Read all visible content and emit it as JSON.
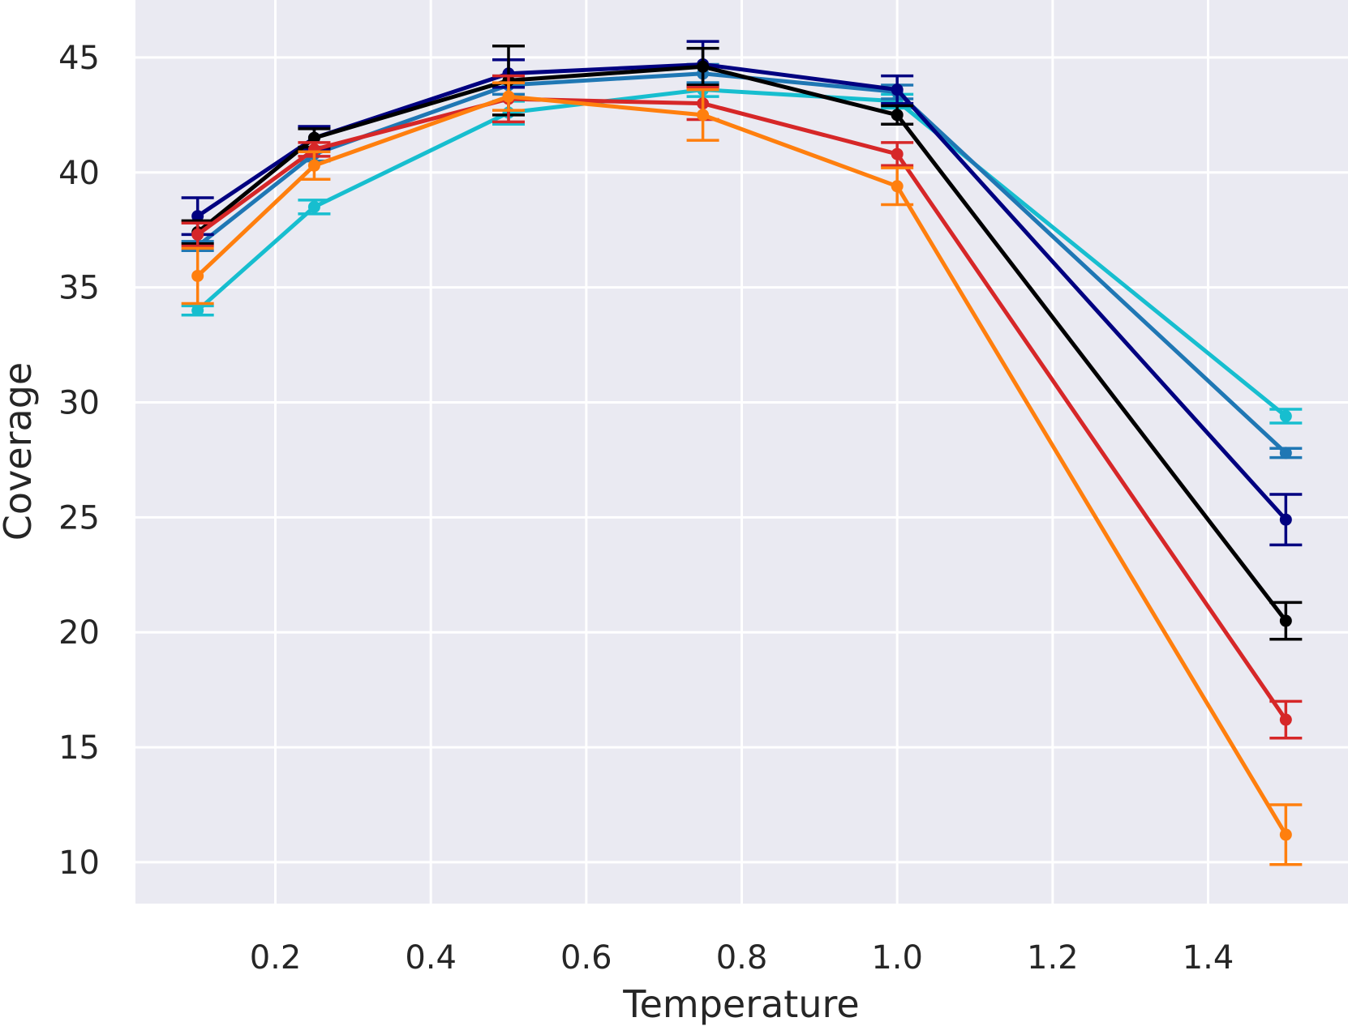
{
  "chart_data": {
    "type": "line",
    "title": "",
    "xlabel": "Temperature",
    "ylabel": "Coverage",
    "xlim": [
      0.02,
      1.58
    ],
    "ylim": [
      8.2,
      47.5
    ],
    "xticks": [
      0.2,
      0.4,
      0.6,
      0.8,
      1.0,
      1.2,
      1.4
    ],
    "xtick_labels": [
      "0.2",
      "0.4",
      "0.6",
      "0.8",
      "1.0",
      "1.2",
      "1.4"
    ],
    "yticks": [
      10,
      15,
      20,
      25,
      30,
      35,
      40,
      45
    ],
    "ytick_labels": [
      "10",
      "15",
      "20",
      "25",
      "30",
      "35",
      "40",
      "45"
    ],
    "grid": true,
    "background": "#eaeaf2",
    "x": [
      0.1,
      0.25,
      0.5,
      0.75,
      1.0,
      1.5
    ],
    "series": [
      {
        "color": "#17becf",
        "values": [
          34.0,
          38.5,
          42.6,
          43.6,
          43.1,
          29.4
        ],
        "errors": [
          0.2,
          0.3,
          0.5,
          0.3,
          0.3,
          0.3
        ]
      },
      {
        "color": "#1f77b4",
        "values": [
          36.8,
          40.8,
          43.8,
          44.3,
          43.5,
          27.8
        ],
        "errors": [
          0.2,
          0.3,
          0.4,
          0.4,
          0.3,
          0.2
        ]
      },
      {
        "color": "#000080",
        "values": [
          38.1,
          41.5,
          44.3,
          44.7,
          43.6,
          24.9
        ],
        "errors": [
          0.8,
          0.5,
          0.6,
          1.0,
          0.6,
          1.1
        ]
      },
      {
        "color": "#000000",
        "values": [
          37.4,
          41.5,
          44.0,
          44.6,
          42.5,
          20.5
        ],
        "errors": [
          0.5,
          0.4,
          1.5,
          0.8,
          0.4,
          0.8
        ]
      },
      {
        "color": "#d62728",
        "values": [
          37.3,
          41.0,
          43.2,
          43.0,
          40.8,
          16.2
        ],
        "errors": [
          0.5,
          0.3,
          1.0,
          0.7,
          0.5,
          0.8
        ]
      },
      {
        "color": "#ff7f0e",
        "values": [
          35.5,
          40.3,
          43.3,
          42.5,
          39.4,
          11.2
        ],
        "errors": [
          1.2,
          0.6,
          0.6,
          1.1,
          0.8,
          1.3
        ]
      }
    ]
  }
}
